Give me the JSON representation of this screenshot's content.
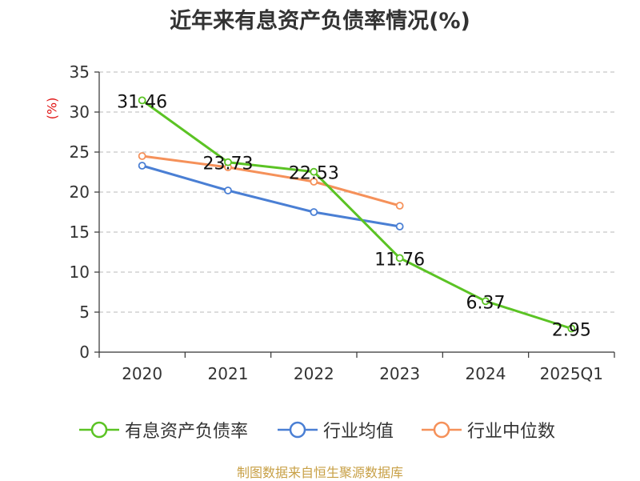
{
  "title": "近年来有息资产负债率情况(%)",
  "y_unit_label": "(%)",
  "source": "制图数据来自恒生聚源数据库",
  "chart_data": {
    "type": "line",
    "title": "近年来有息资产负债率情况(%)",
    "xlabel": "",
    "ylabel": "(%)",
    "categories": [
      "2020",
      "2021",
      "2022",
      "2023",
      "2024",
      "2025Q1"
    ],
    "ylim": [
      0,
      35
    ],
    "yticks": [
      0,
      5,
      10,
      15,
      20,
      25,
      30,
      35
    ],
    "grid": true,
    "legend_position": "bottom",
    "series": [
      {
        "name": "有息资产负债率",
        "color": "#5bc324",
        "values": [
          31.46,
          23.73,
          22.53,
          11.76,
          6.37,
          2.95
        ],
        "labels": [
          "31.46",
          "23.73",
          "22.53",
          "11.76",
          "6.37",
          "2.95"
        ]
      },
      {
        "name": "行业均值",
        "color": "#4a7fd4",
        "values": [
          23.3,
          20.2,
          17.5,
          15.7,
          null,
          null
        ]
      },
      {
        "name": "行业中位数",
        "color": "#f5915a",
        "values": [
          24.5,
          23.1,
          21.3,
          18.3,
          null,
          null
        ]
      }
    ]
  }
}
